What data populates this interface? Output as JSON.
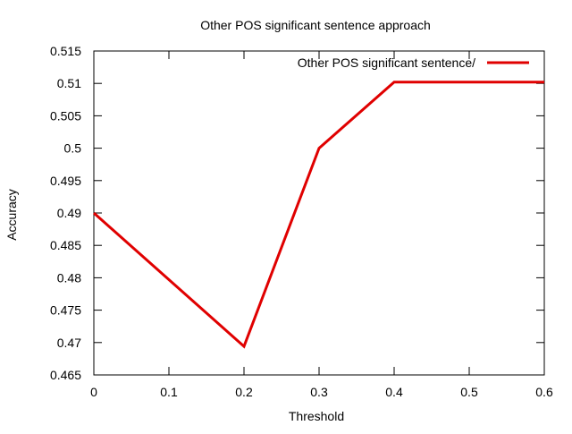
{
  "chart_data": {
    "type": "line",
    "title": "Other POS significant sentence approach",
    "xlabel": "Threshold",
    "ylabel": "Accuracy",
    "xlim": [
      0,
      0.6
    ],
    "ylim": [
      0.465,
      0.515
    ],
    "x_ticks": [
      "0",
      "0.1",
      "0.2",
      "0.3",
      "0.4",
      "0.5",
      "0.6"
    ],
    "y_ticks": [
      "0.465",
      "0.47",
      "0.475",
      "0.48",
      "0.485",
      "0.49",
      "0.495",
      "0.5",
      "0.505",
      "0.51",
      "0.515"
    ],
    "grid": false,
    "legend_position": "top-right",
    "series": [
      {
        "name": "Other POS significant sentence/",
        "color": "#e00000",
        "x": [
          0,
          0.2,
          0.3,
          0.4,
          0.5,
          0.6
        ],
        "y": [
          0.49,
          0.4694,
          0.5,
          0.5102,
          0.5102,
          0.5102
        ]
      }
    ]
  }
}
